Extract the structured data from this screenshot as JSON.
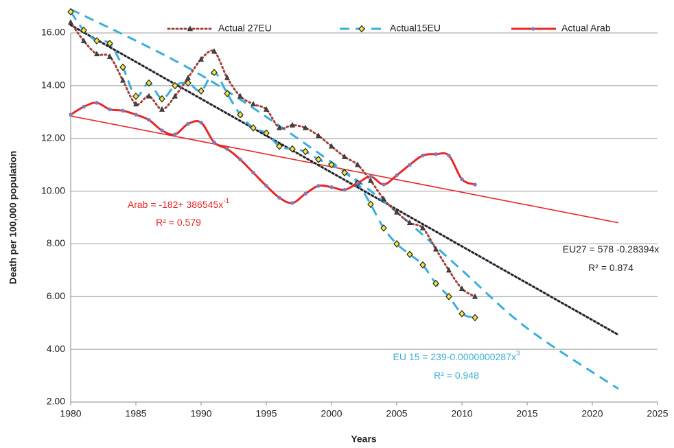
{
  "chart_data": {
    "type": "line",
    "x_label": "Years",
    "y_label": "Death per 100,000 population",
    "x": [
      1980,
      1981,
      1982,
      1983,
      1984,
      1985,
      1986,
      1987,
      1988,
      1989,
      1990,
      1991,
      1992,
      1993,
      1994,
      1995,
      1996,
      1997,
      1998,
      1999,
      2000,
      2001,
      2002,
      2003,
      2004,
      2005,
      2006,
      2007,
      2008,
      2009,
      2010,
      2011
    ],
    "series": [
      {
        "name": "Actual 27EU",
        "color": "#a0413c",
        "marker": "triangle",
        "values": [
          16.4,
          15.7,
          15.2,
          15.1,
          14.2,
          13.3,
          13.6,
          13.1,
          13.6,
          14.3,
          15.0,
          15.3,
          14.3,
          13.6,
          13.3,
          13.1,
          12.4,
          12.5,
          12.4,
          12.1,
          11.7,
          11.3,
          11.0,
          10.4,
          9.7,
          9.2,
          8.8,
          8.6,
          7.8,
          7.0,
          6.3,
          6.0
        ]
      },
      {
        "name": "Actual15EU",
        "color": "#3aaedb",
        "marker": "diamond",
        "values": [
          16.8,
          16.1,
          15.7,
          15.6,
          14.7,
          13.6,
          14.1,
          13.5,
          14.0,
          14.1,
          13.8,
          14.5,
          13.7,
          12.9,
          12.4,
          12.2,
          11.7,
          11.6,
          11.5,
          11.2,
          11.0,
          10.7,
          10.3,
          9.5,
          8.6,
          8.0,
          7.6,
          7.2,
          6.5,
          6.0,
          5.35,
          5.2
        ]
      },
      {
        "name": "Actual Arab",
        "color": "#e8262a",
        "marker": "circle",
        "values": [
          12.9,
          13.2,
          13.35,
          13.1,
          13.05,
          12.9,
          12.7,
          12.3,
          12.15,
          12.55,
          12.6,
          11.85,
          11.6,
          11.2,
          10.7,
          10.2,
          9.75,
          9.55,
          9.9,
          10.2,
          10.15,
          10.05,
          10.3,
          10.55,
          10.25,
          10.6,
          11.0,
          11.35,
          11.4,
          11.35,
          10.45,
          10.25
        ]
      }
    ],
    "trendlines": [
      {
        "color": "#e8262a",
        "style": "solid",
        "x": [
          1980,
          2022
        ],
        "values": [
          12.85,
          8.8
        ]
      },
      {
        "color": "#222222",
        "style": "dotted",
        "x": [
          1980,
          2022
        ],
        "values": [
          16.3,
          4.55
        ]
      },
      {
        "color": "#3aaedb",
        "style": "dashed",
        "x": [
          1980,
          1990,
          2000,
          2005,
          2010,
          2015,
          2022
        ],
        "values": [
          16.9,
          14.4,
          11.1,
          9.2,
          7.0,
          4.8,
          2.5
        ]
      }
    ],
    "annotations": [
      {
        "text": "Arab = -182+ 386545x",
        "sup": "-1",
        "color": "#e8262a"
      },
      {
        "text": "R² = 0.579",
        "color": "#e8262a"
      },
      {
        "text": "EU27 = 578 -0.28394x",
        "color": "#222222"
      },
      {
        "text": "R² = 0.874",
        "color": "#222222"
      },
      {
        "text": "EU 15 = 239-0.0000000287x",
        "sup": "3",
        "color": "#3aaedb"
      },
      {
        "text": "R² = 0.948",
        "color": "#3aaedb"
      }
    ],
    "xlim": [
      1980,
      2025
    ],
    "xticks": [
      1980,
      1985,
      1990,
      1995,
      2000,
      2005,
      2010,
      2015,
      2020,
      2025
    ],
    "ylim": [
      2,
      16
    ],
    "yticks": [
      {
        "value": 2,
        "label": "2.00"
      },
      {
        "value": 4,
        "label": "4.00"
      },
      {
        "value": 6,
        "label": "6.00"
      },
      {
        "value": 8,
        "label": "8.00"
      },
      {
        "value": 10,
        "label": "10.00"
      },
      {
        "value": 12,
        "label": "12.00"
      },
      {
        "value": 14,
        "label": "14.00"
      },
      {
        "value": 16,
        "label": "16.00"
      }
    ],
    "grid": true,
    "legend": "top"
  }
}
